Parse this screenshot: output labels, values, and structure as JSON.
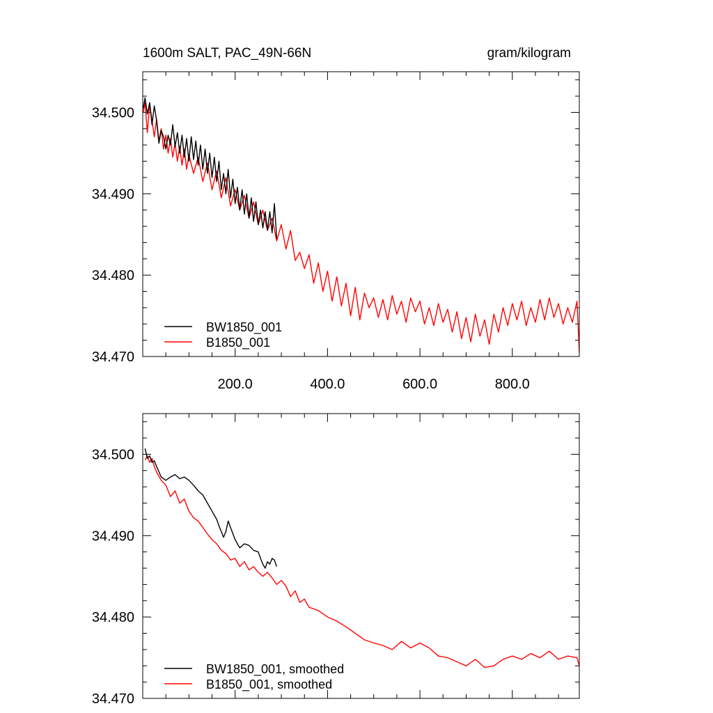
{
  "chart_data": [
    {
      "type": "line",
      "title": "1600m SALT, PAC_49N-66N",
      "units": "gram/kilogram",
      "xlim": [
        0,
        945
      ],
      "ylim": [
        34.47,
        34.505
      ],
      "xticks": [
        200,
        400,
        600,
        800
      ],
      "xtick_labels": [
        "200.0",
        "400.0",
        "600.0",
        "800.0"
      ],
      "yticks": [
        34.47,
        34.48,
        34.49,
        34.5
      ],
      "ytick_labels": [
        "34.470",
        "34.480",
        "34.490",
        "34.500"
      ],
      "legend_position": "bottom-left",
      "series": [
        {
          "name": "BW1850_001",
          "color": "#000000",
          "x": [
            1,
            5,
            10,
            15,
            20,
            25,
            30,
            35,
            40,
            45,
            50,
            55,
            60,
            65,
            70,
            75,
            80,
            85,
            90,
            95,
            100,
            105,
            110,
            115,
            120,
            125,
            130,
            135,
            140,
            145,
            150,
            155,
            160,
            165,
            170,
            175,
            180,
            185,
            190,
            195,
            200,
            205,
            210,
            215,
            220,
            225,
            230,
            235,
            240,
            245,
            250,
            255,
            260,
            265,
            270,
            275,
            280,
            285,
            290
          ],
          "y": [
            34.5005,
            34.5018,
            34.4998,
            34.5012,
            34.4985,
            34.5008,
            34.499,
            34.4962,
            34.4978,
            34.497,
            34.4955,
            34.4972,
            34.496,
            34.4985,
            34.4958,
            34.4975,
            34.495,
            34.4972,
            34.4945,
            34.4968,
            34.494,
            34.497,
            34.4942,
            34.4965,
            34.4935,
            34.496,
            34.493,
            34.4955,
            34.4925,
            34.495,
            34.492,
            34.4945,
            34.4915,
            34.494,
            34.4905,
            34.4925,
            34.49,
            34.493,
            34.4895,
            34.4918,
            34.4888,
            34.4908,
            34.488,
            34.4905,
            34.4875,
            34.49,
            34.487,
            34.4895,
            34.4866,
            34.489,
            34.4862,
            34.488,
            34.4858,
            34.4878,
            34.4855,
            34.4878,
            34.4852,
            34.4888,
            34.4845
          ]
        },
        {
          "name": "B1850_001",
          "color": "#ff0000",
          "x": [
            1,
            5,
            10,
            15,
            20,
            25,
            30,
            35,
            40,
            45,
            50,
            55,
            60,
            65,
            70,
            75,
            80,
            85,
            90,
            95,
            100,
            110,
            120,
            130,
            140,
            150,
            160,
            170,
            180,
            190,
            200,
            210,
            220,
            230,
            240,
            250,
            260,
            270,
            280,
            290,
            300,
            310,
            320,
            330,
            340,
            350,
            360,
            370,
            380,
            390,
            400,
            410,
            420,
            430,
            440,
            450,
            460,
            470,
            480,
            490,
            500,
            510,
            520,
            530,
            540,
            550,
            560,
            570,
            580,
            590,
            600,
            610,
            620,
            630,
            640,
            650,
            660,
            670,
            680,
            690,
            700,
            710,
            720,
            730,
            740,
            750,
            760,
            770,
            780,
            790,
            800,
            810,
            820,
            830,
            840,
            850,
            860,
            870,
            880,
            890,
            900,
            910,
            920,
            930,
            940,
            945
          ],
          "y": [
            34.5,
            34.5012,
            34.4975,
            34.501,
            34.499,
            34.497,
            34.4992,
            34.4965,
            34.498,
            34.4955,
            34.4972,
            34.495,
            34.4968,
            34.4945,
            34.4962,
            34.494,
            34.4958,
            34.4935,
            34.4955,
            34.493,
            34.4948,
            34.4925,
            34.4945,
            34.4915,
            34.4938,
            34.4905,
            34.4928,
            34.4895,
            34.492,
            34.4885,
            34.4905,
            34.488,
            34.4898,
            34.487,
            34.489,
            34.4862,
            34.488,
            34.4855,
            34.487,
            34.4842,
            34.4862,
            34.4832,
            34.4855,
            34.4818,
            34.4828,
            34.4808,
            34.4825,
            34.479,
            34.4815,
            34.478,
            34.4805,
            34.4768,
            34.4798,
            34.4762,
            34.479,
            34.475,
            34.4785,
            34.4745,
            34.4778,
            34.476,
            34.4772,
            34.4748,
            34.477,
            34.4745,
            34.4775,
            34.4752,
            34.4768,
            34.4742,
            34.4772,
            34.4755,
            34.4768,
            34.474,
            34.476,
            34.4738,
            34.4765,
            34.4742,
            34.4758,
            34.473,
            34.4755,
            34.4722,
            34.4748,
            34.4718,
            34.4752,
            34.4725,
            34.4745,
            34.4715,
            34.4752,
            34.473,
            34.476,
            34.4738,
            34.4765,
            34.4745,
            34.4768,
            34.4738,
            34.476,
            34.4742,
            34.477,
            34.4745,
            34.4772,
            34.4748,
            34.4765,
            34.474,
            34.476,
            34.4742,
            34.4768,
            34.4705
          ]
        }
      ]
    },
    {
      "type": "line",
      "title": "",
      "xlim": [
        0,
        945
      ],
      "ylim": [
        34.47,
        34.505
      ],
      "xticks": [
        200,
        400,
        600,
        800
      ],
      "xtick_labels": [],
      "yticks": [
        34.47,
        34.48,
        34.49,
        34.5
      ],
      "ytick_labels": [
        "34.470",
        "34.480",
        "34.490",
        "34.500"
      ],
      "legend_position": "bottom-left",
      "series": [
        {
          "name": "BW1850_001, smoothed",
          "color": "#000000",
          "x": [
            5,
            10,
            15,
            20,
            25,
            30,
            40,
            50,
            60,
            70,
            80,
            90,
            100,
            110,
            120,
            130,
            140,
            150,
            160,
            165,
            170,
            175,
            180,
            185,
            190,
            200,
            210,
            220,
            230,
            240,
            250,
            255,
            260,
            265,
            270,
            275,
            280,
            285,
            290
          ],
          "y": [
            34.5007,
            34.4995,
            34.4998,
            34.499,
            34.4992,
            34.4985,
            34.4972,
            34.4968,
            34.4972,
            34.4975,
            34.497,
            34.4972,
            34.4968,
            34.4962,
            34.4955,
            34.495,
            34.494,
            34.493,
            34.492,
            34.4912,
            34.4905,
            34.4898,
            34.4905,
            34.4918,
            34.491,
            34.4895,
            34.4885,
            34.489,
            34.4888,
            34.4882,
            34.488,
            34.4872,
            34.4865,
            34.486,
            34.4868,
            34.4865,
            34.4872,
            34.487,
            34.4862
          ]
        },
        {
          "name": "B1850_001, smoothed",
          "color": "#ff0000",
          "x": [
            5,
            10,
            15,
            20,
            25,
            30,
            40,
            50,
            60,
            70,
            80,
            90,
            100,
            110,
            120,
            130,
            140,
            150,
            160,
            170,
            180,
            190,
            200,
            210,
            220,
            230,
            240,
            250,
            260,
            270,
            280,
            290,
            300,
            310,
            320,
            330,
            340,
            350,
            360,
            380,
            400,
            420,
            440,
            460,
            480,
            500,
            520,
            540,
            560,
            580,
            600,
            620,
            640,
            660,
            680,
            700,
            720,
            740,
            760,
            780,
            800,
            820,
            840,
            860,
            880,
            900,
            920,
            940,
            945
          ],
          "y": [
            34.4993,
            34.4998,
            34.499,
            34.4995,
            34.4985,
            34.4978,
            34.4968,
            34.4962,
            34.4948,
            34.4955,
            34.494,
            34.4945,
            34.493,
            34.4922,
            34.4918,
            34.491,
            34.4902,
            34.4895,
            34.489,
            34.4882,
            34.4878,
            34.487,
            34.4872,
            34.4862,
            34.4868,
            34.4858,
            34.4862,
            34.4855,
            34.485,
            34.4855,
            34.4848,
            34.484,
            34.4845,
            34.4838,
            34.4825,
            34.4832,
            34.4818,
            34.4822,
            34.4812,
            34.4808,
            34.48,
            34.4795,
            34.4788,
            34.478,
            34.4772,
            34.4768,
            34.4765,
            34.476,
            34.477,
            34.4762,
            34.4768,
            34.4762,
            34.4752,
            34.475,
            34.4745,
            34.474,
            34.4748,
            34.4738,
            34.474,
            34.4748,
            34.4752,
            34.4748,
            34.4755,
            34.475,
            34.4758,
            34.4748,
            34.4752,
            34.475,
            34.474
          ]
        }
      ]
    }
  ]
}
